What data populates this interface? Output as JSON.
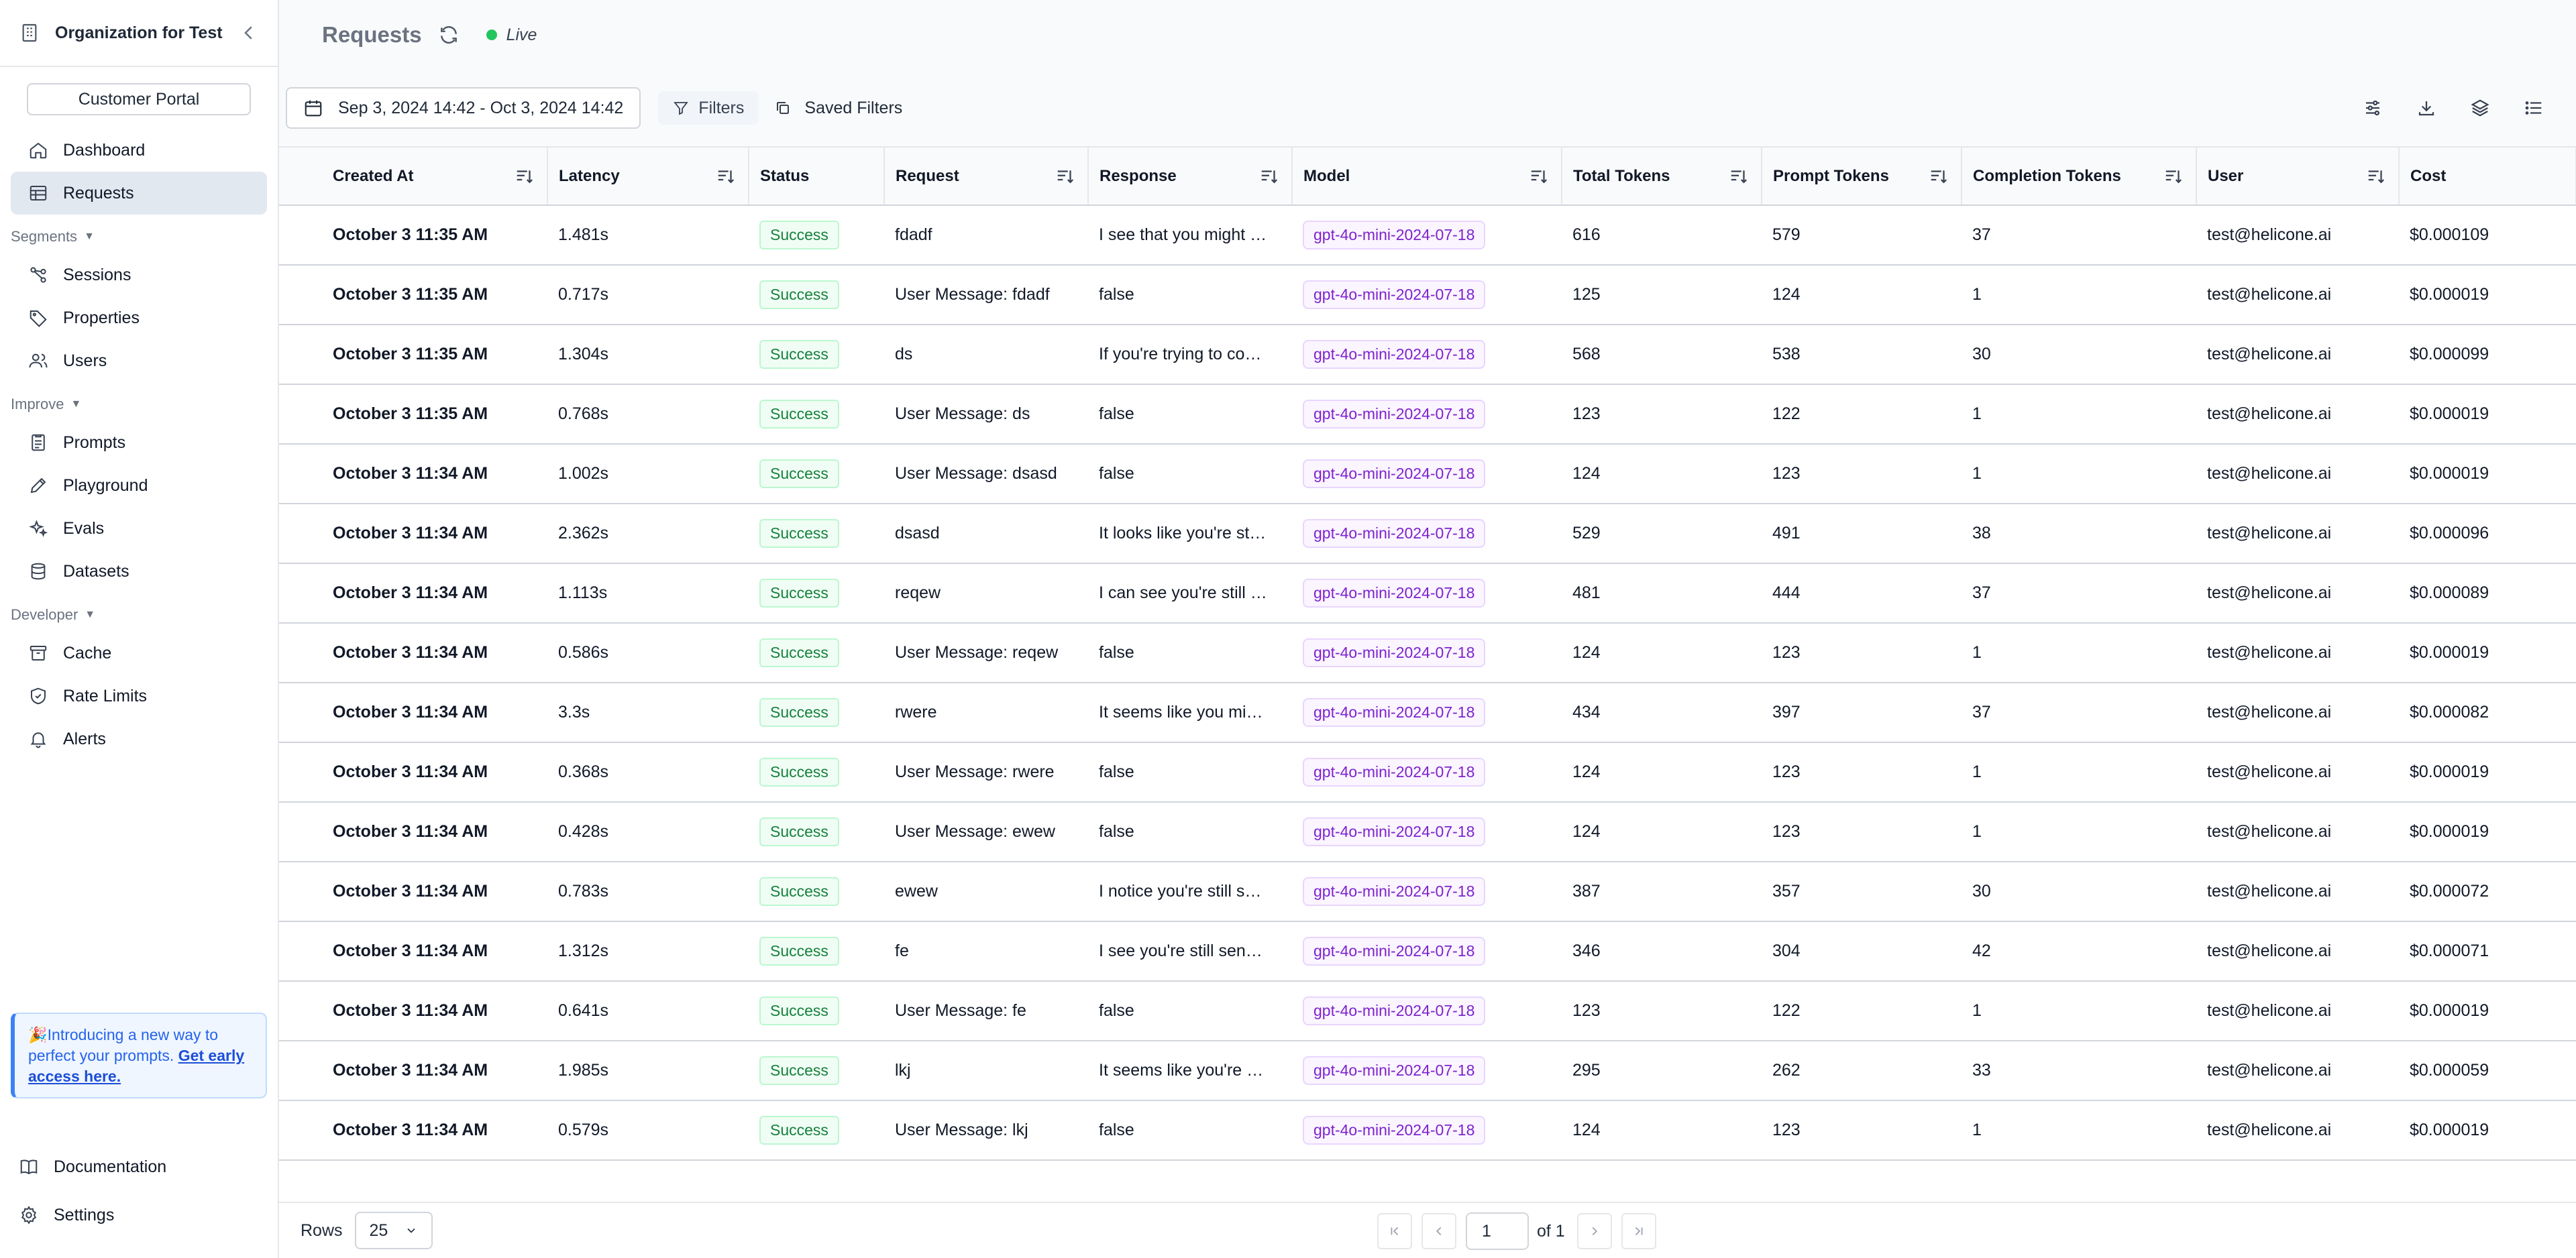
{
  "sidebar": {
    "org_name": "Organization for Test",
    "portal_label": "Customer Portal",
    "top_items": [
      {
        "label": "Dashboard",
        "icon": "home-icon"
      },
      {
        "label": "Requests",
        "icon": "table-icon",
        "active": true
      }
    ],
    "sections": [
      {
        "label": "Segments",
        "items": [
          {
            "label": "Sessions",
            "icon": "sessions-icon"
          },
          {
            "label": "Properties",
            "icon": "tag-icon"
          },
          {
            "label": "Users",
            "icon": "users-icon"
          }
        ]
      },
      {
        "label": "Improve",
        "items": [
          {
            "label": "Prompts",
            "icon": "document-icon"
          },
          {
            "label": "Playground",
            "icon": "pen-icon"
          },
          {
            "label": "Evals",
            "icon": "sparkles-icon"
          },
          {
            "label": "Datasets",
            "icon": "database-icon"
          }
        ]
      },
      {
        "label": "Developer",
        "items": [
          {
            "label": "Cache",
            "icon": "archive-icon"
          },
          {
            "label": "Rate Limits",
            "icon": "shield-icon"
          },
          {
            "label": "Alerts",
            "icon": "bell-icon"
          }
        ]
      }
    ],
    "promo": {
      "emoji": "🎉",
      "text": "Introducing a new way to perfect your prompts.",
      "link": "Get early access here."
    },
    "bottom_items": [
      {
        "label": "Documentation",
        "icon": "book-icon"
      },
      {
        "label": "Settings",
        "icon": "gear-icon"
      }
    ]
  },
  "header": {
    "title": "Requests",
    "live_label": "Live"
  },
  "toolbar": {
    "date_range": "Sep 3, 2024 14:42 - Oct 3, 2024 14:42",
    "filters_label": "Filters",
    "saved_filters_label": "Saved Filters"
  },
  "table": {
    "columns": [
      "Created At",
      "Latency",
      "Status",
      "Request",
      "Response",
      "Model",
      "Total Tokens",
      "Prompt Tokens",
      "Completion Tokens",
      "User",
      "Cost"
    ],
    "rows": [
      [
        "October 3 11:35 AM",
        "1.481s",
        "Success",
        "fdadf",
        "I see that you might …",
        "gpt-4o-mini-2024-07-18",
        "616",
        "579",
        "37",
        "test@helicone.ai",
        "$0.000109"
      ],
      [
        "October 3 11:35 AM",
        "0.717s",
        "Success",
        "User Message: fdadf",
        "false",
        "gpt-4o-mini-2024-07-18",
        "125",
        "124",
        "1",
        "test@helicone.ai",
        "$0.000019"
      ],
      [
        "October 3 11:35 AM",
        "1.304s",
        "Success",
        "ds",
        "If you're trying to co…",
        "gpt-4o-mini-2024-07-18",
        "568",
        "538",
        "30",
        "test@helicone.ai",
        "$0.000099"
      ],
      [
        "October 3 11:35 AM",
        "0.768s",
        "Success",
        "User Message: ds",
        "false",
        "gpt-4o-mini-2024-07-18",
        "123",
        "122",
        "1",
        "test@helicone.ai",
        "$0.000019"
      ],
      [
        "October 3 11:34 AM",
        "1.002s",
        "Success",
        "User Message: dsasd",
        "false",
        "gpt-4o-mini-2024-07-18",
        "124",
        "123",
        "1",
        "test@helicone.ai",
        "$0.000019"
      ],
      [
        "October 3 11:34 AM",
        "2.362s",
        "Success",
        "dsasd",
        "It looks like you're st…",
        "gpt-4o-mini-2024-07-18",
        "529",
        "491",
        "38",
        "test@helicone.ai",
        "$0.000096"
      ],
      [
        "October 3 11:34 AM",
        "1.113s",
        "Success",
        "reqew",
        "I can see you're still …",
        "gpt-4o-mini-2024-07-18",
        "481",
        "444",
        "37",
        "test@helicone.ai",
        "$0.000089"
      ],
      [
        "October 3 11:34 AM",
        "0.586s",
        "Success",
        "User Message: reqew",
        "false",
        "gpt-4o-mini-2024-07-18",
        "124",
        "123",
        "1",
        "test@helicone.ai",
        "$0.000019"
      ],
      [
        "October 3 11:34 AM",
        "3.3s",
        "Success",
        "rwere",
        "It seems like you mi…",
        "gpt-4o-mini-2024-07-18",
        "434",
        "397",
        "37",
        "test@helicone.ai",
        "$0.000082"
      ],
      [
        "October 3 11:34 AM",
        "0.368s",
        "Success",
        "User Message: rwere",
        "false",
        "gpt-4o-mini-2024-07-18",
        "124",
        "123",
        "1",
        "test@helicone.ai",
        "$0.000019"
      ],
      [
        "October 3 11:34 AM",
        "0.428s",
        "Success",
        "User Message: ewew",
        "false",
        "gpt-4o-mini-2024-07-18",
        "124",
        "123",
        "1",
        "test@helicone.ai",
        "$0.000019"
      ],
      [
        "October 3 11:34 AM",
        "0.783s",
        "Success",
        "ewew",
        "I notice you're still s…",
        "gpt-4o-mini-2024-07-18",
        "387",
        "357",
        "30",
        "test@helicone.ai",
        "$0.000072"
      ],
      [
        "October 3 11:34 AM",
        "1.312s",
        "Success",
        "fe",
        "I see you're still sen…",
        "gpt-4o-mini-2024-07-18",
        "346",
        "304",
        "42",
        "test@helicone.ai",
        "$0.000071"
      ],
      [
        "October 3 11:34 AM",
        "0.641s",
        "Success",
        "User Message: fe",
        "false",
        "gpt-4o-mini-2024-07-18",
        "123",
        "122",
        "1",
        "test@helicone.ai",
        "$0.000019"
      ],
      [
        "October 3 11:34 AM",
        "1.985s",
        "Success",
        "lkj",
        "It seems like you're …",
        "gpt-4o-mini-2024-07-18",
        "295",
        "262",
        "33",
        "test@helicone.ai",
        "$0.000059"
      ],
      [
        "October 3 11:34 AM",
        "0.579s",
        "Success",
        "User Message: lkj",
        "false",
        "gpt-4o-mini-2024-07-18",
        "124",
        "123",
        "1",
        "test@helicone.ai",
        "$0.000019"
      ]
    ]
  },
  "footer": {
    "rows_label": "Rows",
    "rows_value": "25",
    "page_value": "1",
    "of_label": "of 1"
  },
  "colors": {
    "accent_green": "#22c55e",
    "model_purple": "#7e22ce",
    "active_bg": "#e2e8f0"
  }
}
